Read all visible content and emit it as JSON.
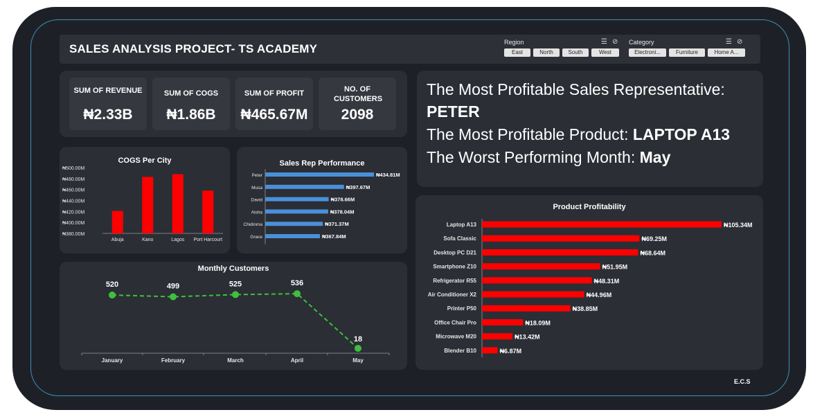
{
  "header": {
    "title": "SALES ANALYSIS PROJECT- TS ACADEMY",
    "region_slicer": {
      "label": "Region",
      "options": [
        "East",
        "North",
        "South",
        "West"
      ]
    },
    "category_slicer": {
      "label": "Category",
      "options": [
        "Electroni...",
        "Furniture",
        "Home A..."
      ]
    }
  },
  "kpis": [
    {
      "label": "SUM OF REVENUE",
      "value": "₦2.33B"
    },
    {
      "label": "SUM OF COGS",
      "value": "₦1.86B"
    },
    {
      "label": "SUM OF PROFIT",
      "value": "₦465.67M"
    },
    {
      "label": "NO. OF CUSTOMERS",
      "value": "2098"
    }
  ],
  "insights": {
    "rep_label": "The Most Profitable Sales Representative:",
    "rep_value": "PETER",
    "product_label": "The Most Profitable Product: ",
    "product_value": "LAPTOP A13",
    "month_label": "The Worst Performing Month: ",
    "month_value": "May"
  },
  "footer": {
    "text": "E.C.S"
  },
  "colors": {
    "red": "#ff0000",
    "blue": "#4a90d9",
    "green": "#3ec03e"
  },
  "chart_data": [
    {
      "id": "cogs",
      "type": "bar",
      "title": "COGS Per City",
      "categories": [
        "Abuja",
        "Kano",
        "Lagos",
        "Port Harcourt"
      ],
      "values": [
        421,
        483,
        488,
        458
      ],
      "unit": "₦M",
      "ylim": [
        380,
        500
      ],
      "yticks": [
        "₦380.00M",
        "₦400.00M",
        "₦420.00M",
        "₦440.00M",
        "₦460.00M",
        "₦480.00M",
        "₦500.00M"
      ],
      "color": "#ff0000"
    },
    {
      "id": "reps",
      "type": "bar",
      "orientation": "horizontal",
      "title": "Sales Rep Performance",
      "categories": [
        "Peter",
        "Musa",
        "David",
        "Aisha",
        "Chidinma",
        "Grace"
      ],
      "values": [
        434.81,
        397.67,
        378.66,
        378.04,
        371.37,
        367.84
      ],
      "labels": [
        "₦434.81M",
        "₦397.67M",
        "₦378.66M",
        "₦378.04M",
        "₦371.37M",
        "₦367.84M"
      ],
      "color": "#4a90d9"
    },
    {
      "id": "monthly",
      "type": "line",
      "title": "Monthly Customers",
      "categories": [
        "January",
        "February",
        "March",
        "April",
        "May"
      ],
      "values": [
        520,
        499,
        525,
        536,
        18
      ],
      "color": "#3ec03e"
    },
    {
      "id": "products",
      "type": "bar",
      "orientation": "horizontal",
      "title": "Product Profitability",
      "categories": [
        "Laptop A13",
        "Sofa Classic",
        "Desktop PC D21",
        "Smartphone Z10",
        "Refrigerator R55",
        "Air Conditioner X2",
        "Printer P50",
        "Office Chair Pro",
        "Microwave M20",
        "Blender B10"
      ],
      "values": [
        105.34,
        69.25,
        68.64,
        51.95,
        48.31,
        44.96,
        38.85,
        18.09,
        13.42,
        6.87
      ],
      "labels": [
        "₦105.34M",
        "₦69.25M",
        "₦68.64M",
        "₦51.95M",
        "₦48.31M",
        "₦44.96M",
        "₦38.85M",
        "₦18.09M",
        "₦13.42M",
        "₦6.87M"
      ],
      "color": "#ff0000"
    }
  ]
}
